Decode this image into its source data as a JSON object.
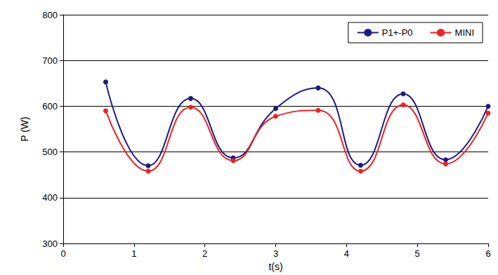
{
  "chart_data": {
    "type": "line",
    "x_label": "t(s)",
    "y_label": "P (W)",
    "x": [
      0.6,
      1.2,
      1.8,
      2.4,
      3.0,
      3.6,
      4.2,
      4.8,
      5.4,
      6.0
    ],
    "series": [
      {
        "name": "P1+-P0",
        "color": "#1c1c80",
        "marker": "circle",
        "line_style": "solid",
        "values": [
          653,
          470,
          617,
          487,
          595,
          640,
          471,
          627,
          483,
          600
        ]
      },
      {
        "name": "MINI",
        "color": "#ee2222",
        "marker": "circle",
        "line_style": "solid",
        "values": [
          590,
          458,
          598,
          481,
          578,
          591,
          458,
          603,
          474,
          585
        ]
      }
    ],
    "xlim": [
      0,
      6
    ],
    "xticks": [
      0,
      1,
      2,
      3,
      4,
      5,
      6
    ],
    "ylim": [
      300,
      800
    ],
    "yticks": [
      300,
      400,
      500,
      600,
      700,
      800
    ],
    "grid": true,
    "legend": "top-right"
  }
}
